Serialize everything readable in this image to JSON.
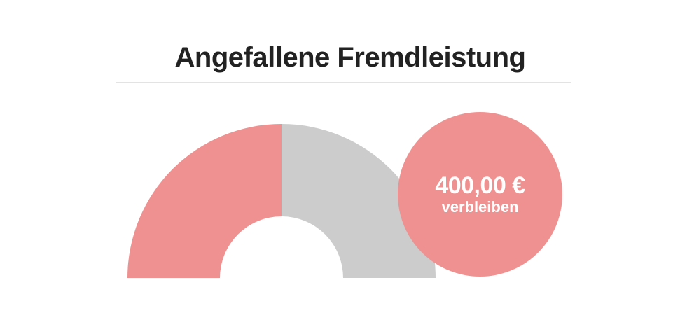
{
  "chart_data": {
    "type": "gauge",
    "title": "Angefallene Fremdleistung",
    "segments": [
      {
        "name": "",
        "fraction": 0.5,
        "color": "#ef9190"
      },
      {
        "name": "",
        "fraction": 0.5,
        "color": "#cccccc"
      }
    ],
    "remaining": {
      "value": "400,00 €",
      "label": "verbleiben",
      "color": "#ef9190"
    }
  }
}
